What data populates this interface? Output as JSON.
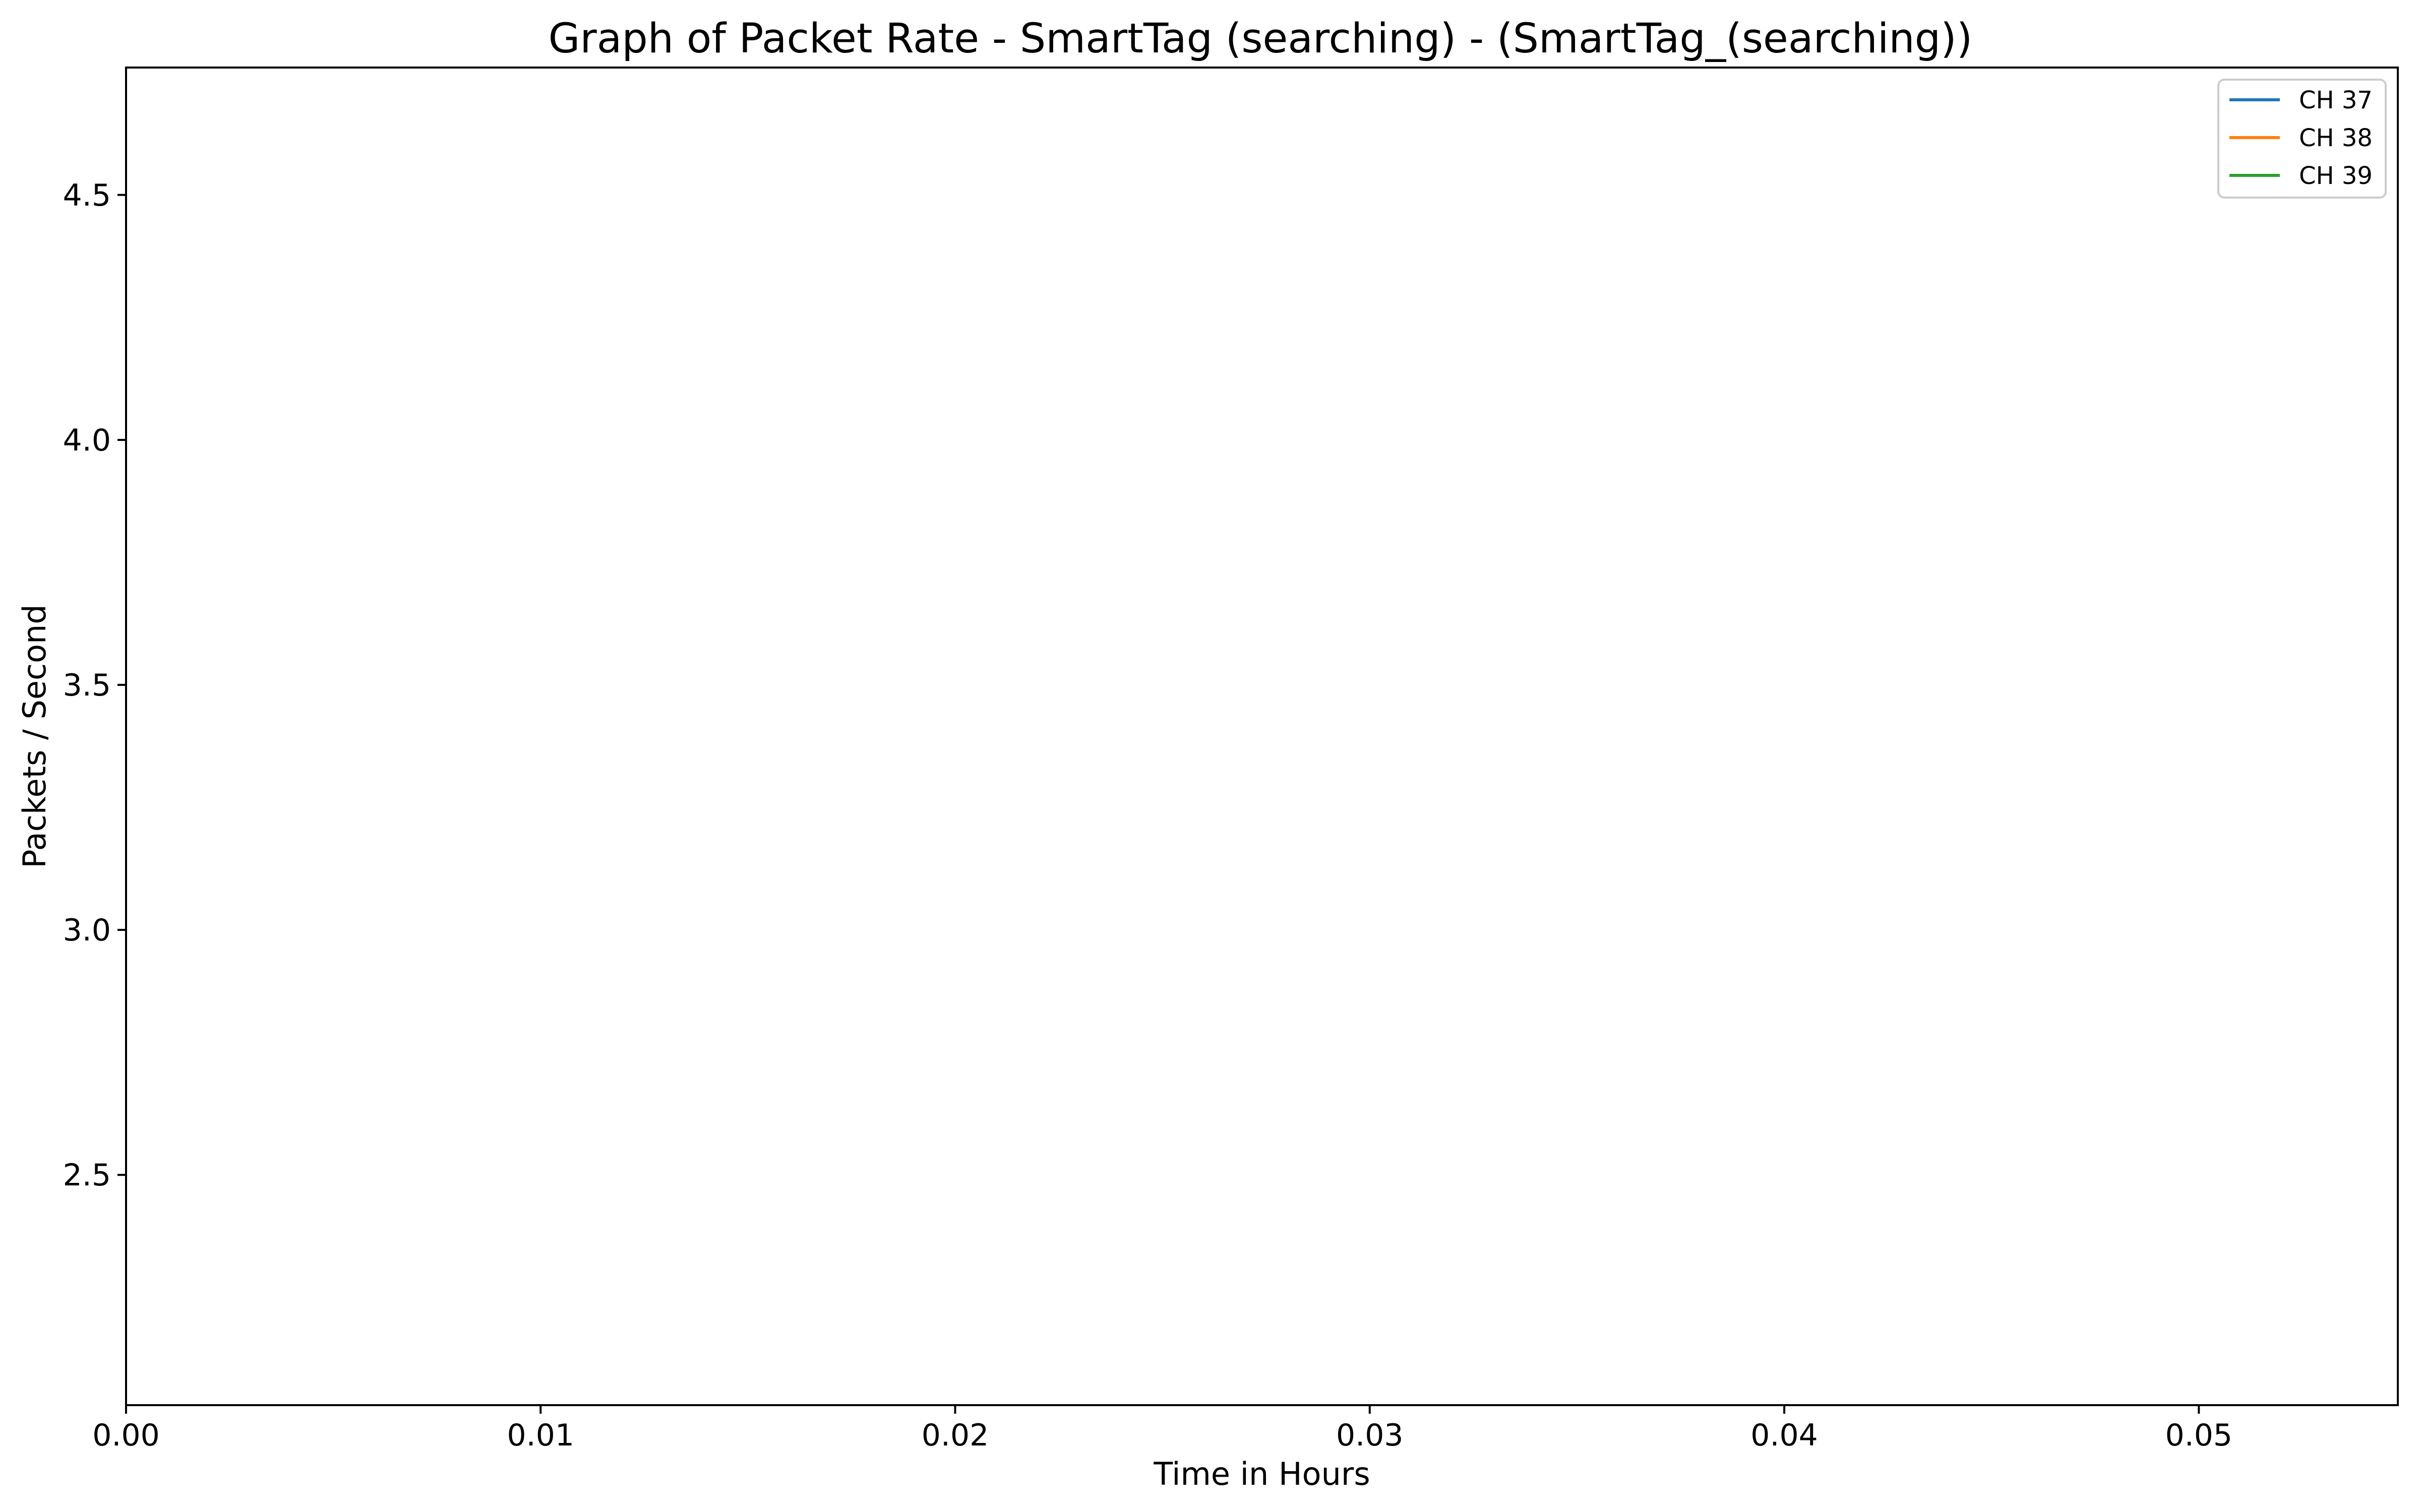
{
  "chart_data": {
    "type": "line",
    "title": "Graph of Packet Rate - SmartTag (searching) - (SmartTag_(searching))",
    "xlabel": "Time in Hours",
    "ylabel": "Packets / Second",
    "xlim": [
      0.0,
      0.0548
    ],
    "ylim": [
      2.03,
      4.76
    ],
    "x_ticks": [
      {
        "value": 0.0,
        "label": "0.00"
      },
      {
        "value": 0.01,
        "label": "0.01"
      },
      {
        "value": 0.02,
        "label": "0.02"
      },
      {
        "value": 0.03,
        "label": "0.03"
      },
      {
        "value": 0.04,
        "label": "0.04"
      },
      {
        "value": 0.05,
        "label": "0.05"
      }
    ],
    "y_ticks": [
      {
        "value": 2.5,
        "label": "2.5"
      },
      {
        "value": 3.0,
        "label": "3.0"
      },
      {
        "value": 3.5,
        "label": "3.5"
      },
      {
        "value": 4.0,
        "label": "4.0"
      },
      {
        "value": 4.5,
        "label": "4.5"
      }
    ],
    "grid": false,
    "legend_position": "top-right",
    "series": [
      {
        "name": "CH 37",
        "color": "#1f77b4",
        "x": [],
        "y": []
      },
      {
        "name": "CH 38",
        "color": "#ff7f0e",
        "x": [],
        "y": []
      },
      {
        "name": "CH 39",
        "color": "#2ca02c",
        "x": [],
        "y": []
      }
    ]
  }
}
